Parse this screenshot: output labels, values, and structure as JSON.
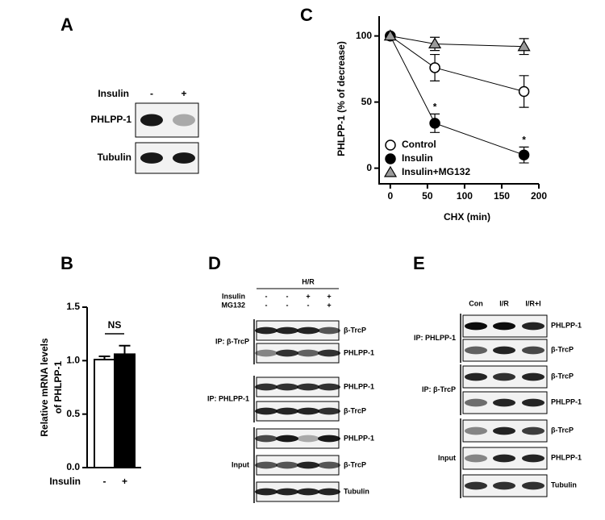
{
  "chart_data": [
    {
      "type": "line",
      "panel": "C",
      "xlabel": "CHX (min)",
      "ylabel": "PHLPP-1 (% of decrease)",
      "x": [
        0,
        60,
        180
      ],
      "xlim": [
        -15,
        200
      ],
      "xticks": [
        0,
        50,
        100,
        150,
        200
      ],
      "ylim": [
        -10,
        115
      ],
      "yticks": [
        0,
        50,
        100
      ],
      "legend": "lower left",
      "series": [
        {
          "name": "Control",
          "color": "#000000",
          "fill": "#ffffff",
          "marker": "circle",
          "values": [
            100,
            76,
            58
          ],
          "errors": [
            0,
            10,
            12
          ]
        },
        {
          "name": "Insulin",
          "color": "#000000",
          "fill": "#000000",
          "marker": "circle",
          "values": [
            100,
            34,
            10
          ],
          "errors": [
            0,
            7,
            6
          ]
        },
        {
          "name": "Insulin+MG132",
          "color": "#000000",
          "fill": "#9a9a9a",
          "marker": "triangle",
          "values": [
            100,
            94,
            92
          ],
          "errors": [
            0,
            5,
            6
          ]
        }
      ],
      "annotations": [
        "*",
        "*"
      ]
    },
    {
      "type": "bar",
      "panel": "B",
      "xlabel": "Insulin",
      "ylabel": [
        "Relative mRNA levels",
        "of PHLPP-1"
      ],
      "categories": [
        "-",
        "+"
      ],
      "values": [
        1.01,
        1.06
      ],
      "errors": [
        0.03,
        0.08
      ],
      "colors": [
        "#ffffff",
        "#000000"
      ],
      "ylim": [
        0,
        1.5
      ],
      "yticks": [
        {
          "value": 0,
          "label": "0.0"
        },
        {
          "value": 0.5,
          "label": "0.5"
        },
        {
          "value": 1,
          "label": "1.0"
        },
        {
          "value": 1.5,
          "label": "1.5"
        }
      ],
      "annotation": "NS"
    }
  ],
  "panel_a": {
    "label": "A",
    "treatment": "Insulin",
    "lanes": [
      "-",
      "+"
    ],
    "blots": [
      "PHLPP-1",
      "Tubulin"
    ]
  },
  "panel_d": {
    "label": "D",
    "group": "H/R",
    "rows": [
      {
        "name": "Insulin",
        "lanes": [
          "-",
          "-",
          "+",
          "+"
        ]
      },
      {
        "name": "MG132",
        "lanes": [
          "-",
          "-",
          "-",
          "+"
        ]
      }
    ],
    "sections": [
      {
        "name": "IP: β-TrcP",
        "blots": [
          "β-TrcP",
          "PHLPP-1"
        ]
      },
      {
        "name": "IP: PHLPP-1",
        "blots": [
          "PHLPP-1",
          "β-TrcP"
        ]
      },
      {
        "name": "Input",
        "blots": [
          "PHLPP-1",
          "β-TrcP",
          "Tubulin"
        ]
      }
    ]
  },
  "panel_e": {
    "label": "E",
    "lanes": [
      "Con",
      "I/R",
      "I/R+I"
    ],
    "sections": [
      {
        "name": "IP: PHLPP-1",
        "blots": [
          "PHLPP-1",
          "β-TrcP"
        ]
      },
      {
        "name": "IP: β-TrcP",
        "blots": [
          "β-TrcP",
          "PHLPP-1"
        ]
      },
      {
        "name": "Input",
        "blots": [
          "β-TrcP",
          "PHLPP-1",
          "Tubulin"
        ]
      }
    ]
  }
}
